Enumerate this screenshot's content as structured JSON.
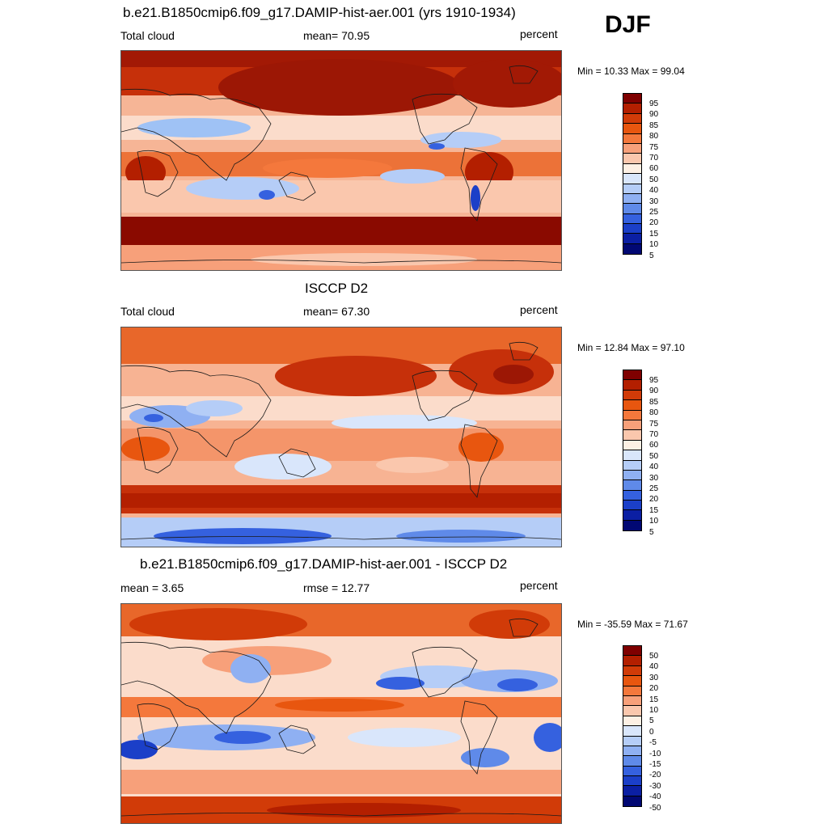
{
  "season": "DJF",
  "panels": [
    {
      "title": "b.e21.B1850cmip6.f09_g17.DAMIP-hist-aer.001 (yrs 1910-1934)",
      "left_label": "Total cloud",
      "center_label": "mean=  70.95",
      "right_label": "percent",
      "minmax": "Min =  10.33 Max =  99.04",
      "colorbar_labels": [
        "95",
        "90",
        "85",
        "80",
        "75",
        "70",
        "60",
        "50",
        "40",
        "30",
        "25",
        "20",
        "15",
        "10",
        "5"
      ]
    },
    {
      "title": "ISCCP D2",
      "left_label": "Total cloud",
      "center_label": "mean=  67.30",
      "right_label": "percent",
      "minmax": "Min =  12.84 Max =  97.10",
      "colorbar_labels": [
        "95",
        "90",
        "85",
        "80",
        "75",
        "70",
        "60",
        "50",
        "40",
        "30",
        "25",
        "20",
        "15",
        "10",
        "5"
      ]
    },
    {
      "title": "b.e21.B1850cmip6.f09_g17.DAMIP-hist-aer.001 - ISCCP D2",
      "left_label": "mean =   3.65",
      "center_label": "rmse =  12.77",
      "right_label": "percent",
      "minmax": "Min = -35.59 Max =  71.67",
      "colorbar_labels": [
        "50",
        "40",
        "30",
        "20",
        "15",
        "10",
        "5",
        "0",
        "-5",
        "-10",
        "-15",
        "-20",
        "-30",
        "-40",
        "-50"
      ]
    }
  ],
  "colors": {
    "scale": [
      "#7f0000",
      "#b31f00",
      "#d13b08",
      "#e8560f",
      "#f4783c",
      "#f7a07a",
      "#fac7ad",
      "#fdf0e4",
      "#d9e6fb",
      "#b5cdf7",
      "#8fb0f2",
      "#5f8ae9",
      "#3561df",
      "#1b3fc8",
      "#0b1fa3",
      "#010873"
    ],
    "land_outline": "#1a1a1a"
  }
}
